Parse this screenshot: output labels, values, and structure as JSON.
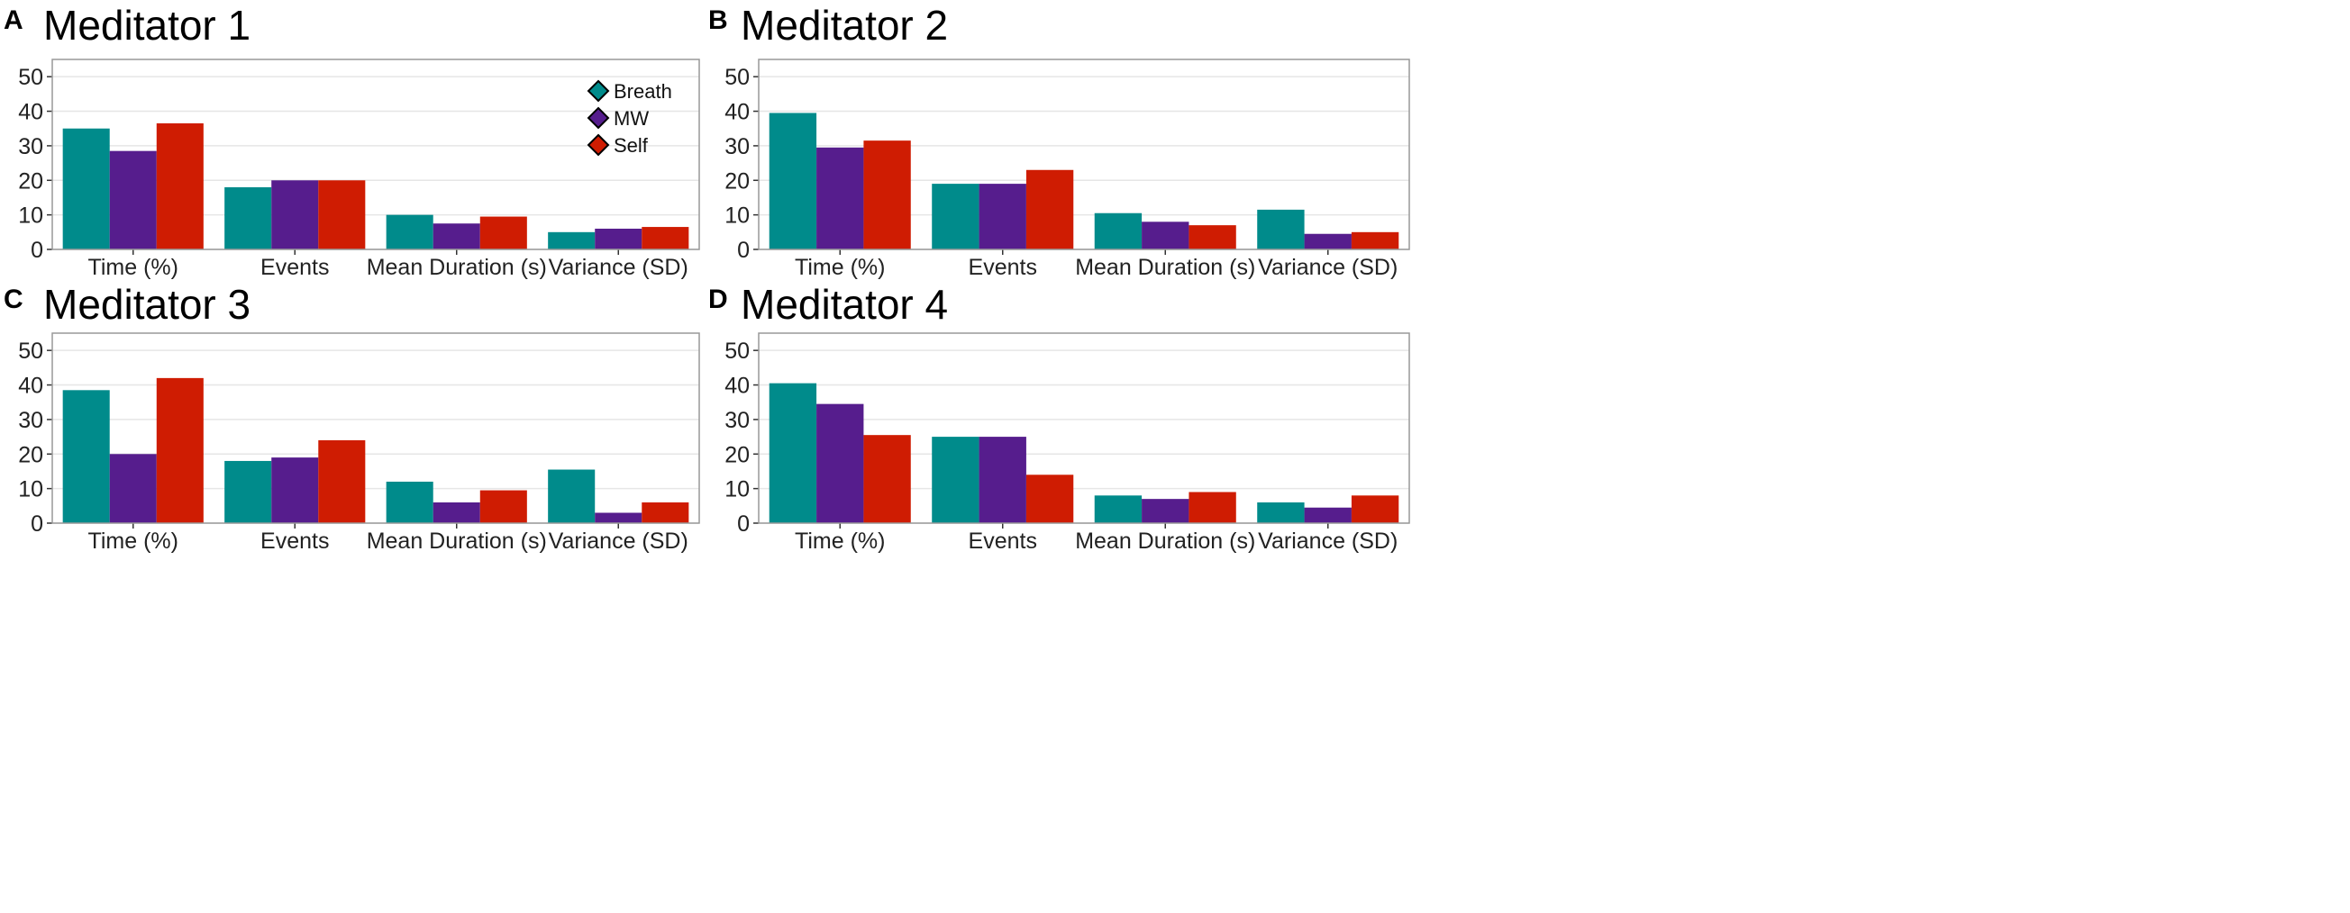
{
  "colors": {
    "Breath": "#008B8B",
    "MW": "#561D8D",
    "Self": "#CF1C02",
    "grid": "#E6E6E6",
    "axis": "#999999"
  },
  "legend": {
    "items": [
      "Breath",
      "MW",
      "Self"
    ],
    "placement": "top-right of panel A"
  },
  "chart_data": [
    {
      "panel": "A",
      "title": "Meditator 1",
      "type": "bar",
      "categories": [
        "Time (%)",
        "Events",
        "Mean Duration (s)",
        "Variance (SD)"
      ],
      "ylim": [
        0,
        55
      ],
      "yticks": [
        0,
        10,
        20,
        30,
        40,
        50
      ],
      "grid": true,
      "series": [
        {
          "name": "Breath",
          "values": [
            35,
            18,
            10,
            5
          ]
        },
        {
          "name": "MW",
          "values": [
            28.5,
            20,
            7.5,
            6
          ]
        },
        {
          "name": "Self",
          "values": [
            36.5,
            20,
            9.5,
            6.5
          ]
        }
      ]
    },
    {
      "panel": "B",
      "title": "Meditator 2",
      "type": "bar",
      "categories": [
        "Time (%)",
        "Events",
        "Mean Duration (s)",
        "Variance (SD)"
      ],
      "ylim": [
        0,
        55
      ],
      "yticks": [
        0,
        10,
        20,
        30,
        40,
        50
      ],
      "grid": true,
      "series": [
        {
          "name": "Breath",
          "values": [
            39.5,
            19,
            10.5,
            11.5
          ]
        },
        {
          "name": "MW",
          "values": [
            29.5,
            19,
            8,
            4.5
          ]
        },
        {
          "name": "Self",
          "values": [
            31.5,
            23,
            7,
            5
          ]
        }
      ]
    },
    {
      "panel": "C",
      "title": "Meditator 3",
      "type": "bar",
      "categories": [
        "Time (%)",
        "Events",
        "Mean Duration (s)",
        "Variance (SD)"
      ],
      "ylim": [
        0,
        55
      ],
      "yticks": [
        0,
        10,
        20,
        30,
        40,
        50
      ],
      "grid": true,
      "series": [
        {
          "name": "Breath",
          "values": [
            38.5,
            18,
            12,
            15.5
          ]
        },
        {
          "name": "MW",
          "values": [
            20,
            19,
            6,
            3
          ]
        },
        {
          "name": "Self",
          "values": [
            42,
            24,
            9.5,
            6
          ]
        }
      ]
    },
    {
      "panel": "D",
      "title": "Meditator 4",
      "type": "bar",
      "categories": [
        "Time (%)",
        "Events",
        "Mean Duration (s)",
        "Variance (SD)"
      ],
      "ylim": [
        0,
        55
      ],
      "yticks": [
        0,
        10,
        20,
        30,
        40,
        50
      ],
      "grid": true,
      "series": [
        {
          "name": "Breath",
          "values": [
            40.5,
            25,
            8,
            6
          ]
        },
        {
          "name": "MW",
          "values": [
            34.5,
            25,
            7,
            4.5
          ]
        },
        {
          "name": "Self",
          "values": [
            25.5,
            14,
            9,
            8
          ]
        }
      ]
    }
  ]
}
